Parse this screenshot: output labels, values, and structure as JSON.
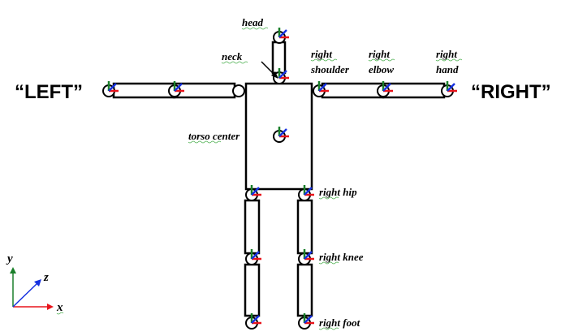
{
  "labels": {
    "head": "head",
    "neck": "neck",
    "right_shoulder_1": "right",
    "right_shoulder_2": "shoulder",
    "right_elbow_1": "right",
    "right_elbow_2": "elbow",
    "right_hand_1": "right",
    "right_hand_2": "hand",
    "torso_center": "torso center",
    "right_hip": "right hip",
    "right_knee": "right knee",
    "right_foot": "right foot",
    "left_side": "“LEFT”",
    "right_side": "“RIGHT”"
  },
  "axes": {
    "x": "x",
    "y": "y",
    "z": "z"
  },
  "colors": {
    "x_axis": "#e8141b",
    "y_axis": "#1a7f2a",
    "z_axis": "#1631e0",
    "outline": "#000000"
  }
}
